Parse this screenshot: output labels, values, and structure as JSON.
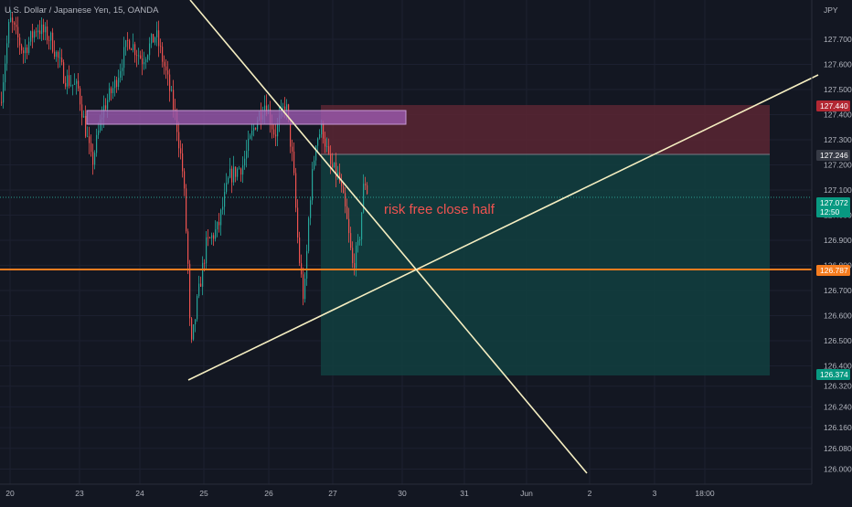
{
  "symbol_title": "U.S. Dollar / Japanese Yen, 15, OANDA",
  "currency_label": "JPY",
  "annotation_text": "risk free close half",
  "chart_data": {
    "type": "candlestick",
    "title": "U.S. Dollar / Japanese Yen, 15, OANDA",
    "y_axis_label": "JPY",
    "y_tick_labels": [
      "127.700",
      "127.600",
      "127.500",
      "127.400",
      "127.300",
      "127.200",
      "127.100",
      "127.000",
      "126.900",
      "126.800",
      "126.700",
      "126.600",
      "126.500",
      "126.400",
      "126.320",
      "126.240",
      "126.160",
      "126.080",
      "126.000"
    ],
    "x_tick_labels": [
      "20",
      "23",
      "24",
      "25",
      "26",
      "27",
      "30",
      "31",
      "Jun",
      "2",
      "3",
      "18:00"
    ],
    "price_badges": [
      {
        "label": "127.440",
        "color": "#b22833"
      },
      {
        "label": "127.246",
        "color": "#363a45"
      },
      {
        "label": "127.072",
        "sublabel": "12:50",
        "color": "#089981"
      },
      {
        "label": "126.787",
        "color": "#f57c1f"
      },
      {
        "label": "126.374",
        "color": "#089981"
      }
    ],
    "levels": {
      "stop": 127.44,
      "entry": 127.246,
      "current": 127.072,
      "horizontal": 126.787,
      "target": 126.374
    },
    "colors": {
      "background": "#131722",
      "bull": "#26a69a",
      "bear": "#ef5350",
      "trendline": "#f5eec1",
      "horizontal_line": "#f57c1f",
      "stop_zone": "#5a2632",
      "target_zone": "#12403f",
      "supply_zone": "#9c5ab0",
      "annotation": "#ef5350"
    }
  }
}
